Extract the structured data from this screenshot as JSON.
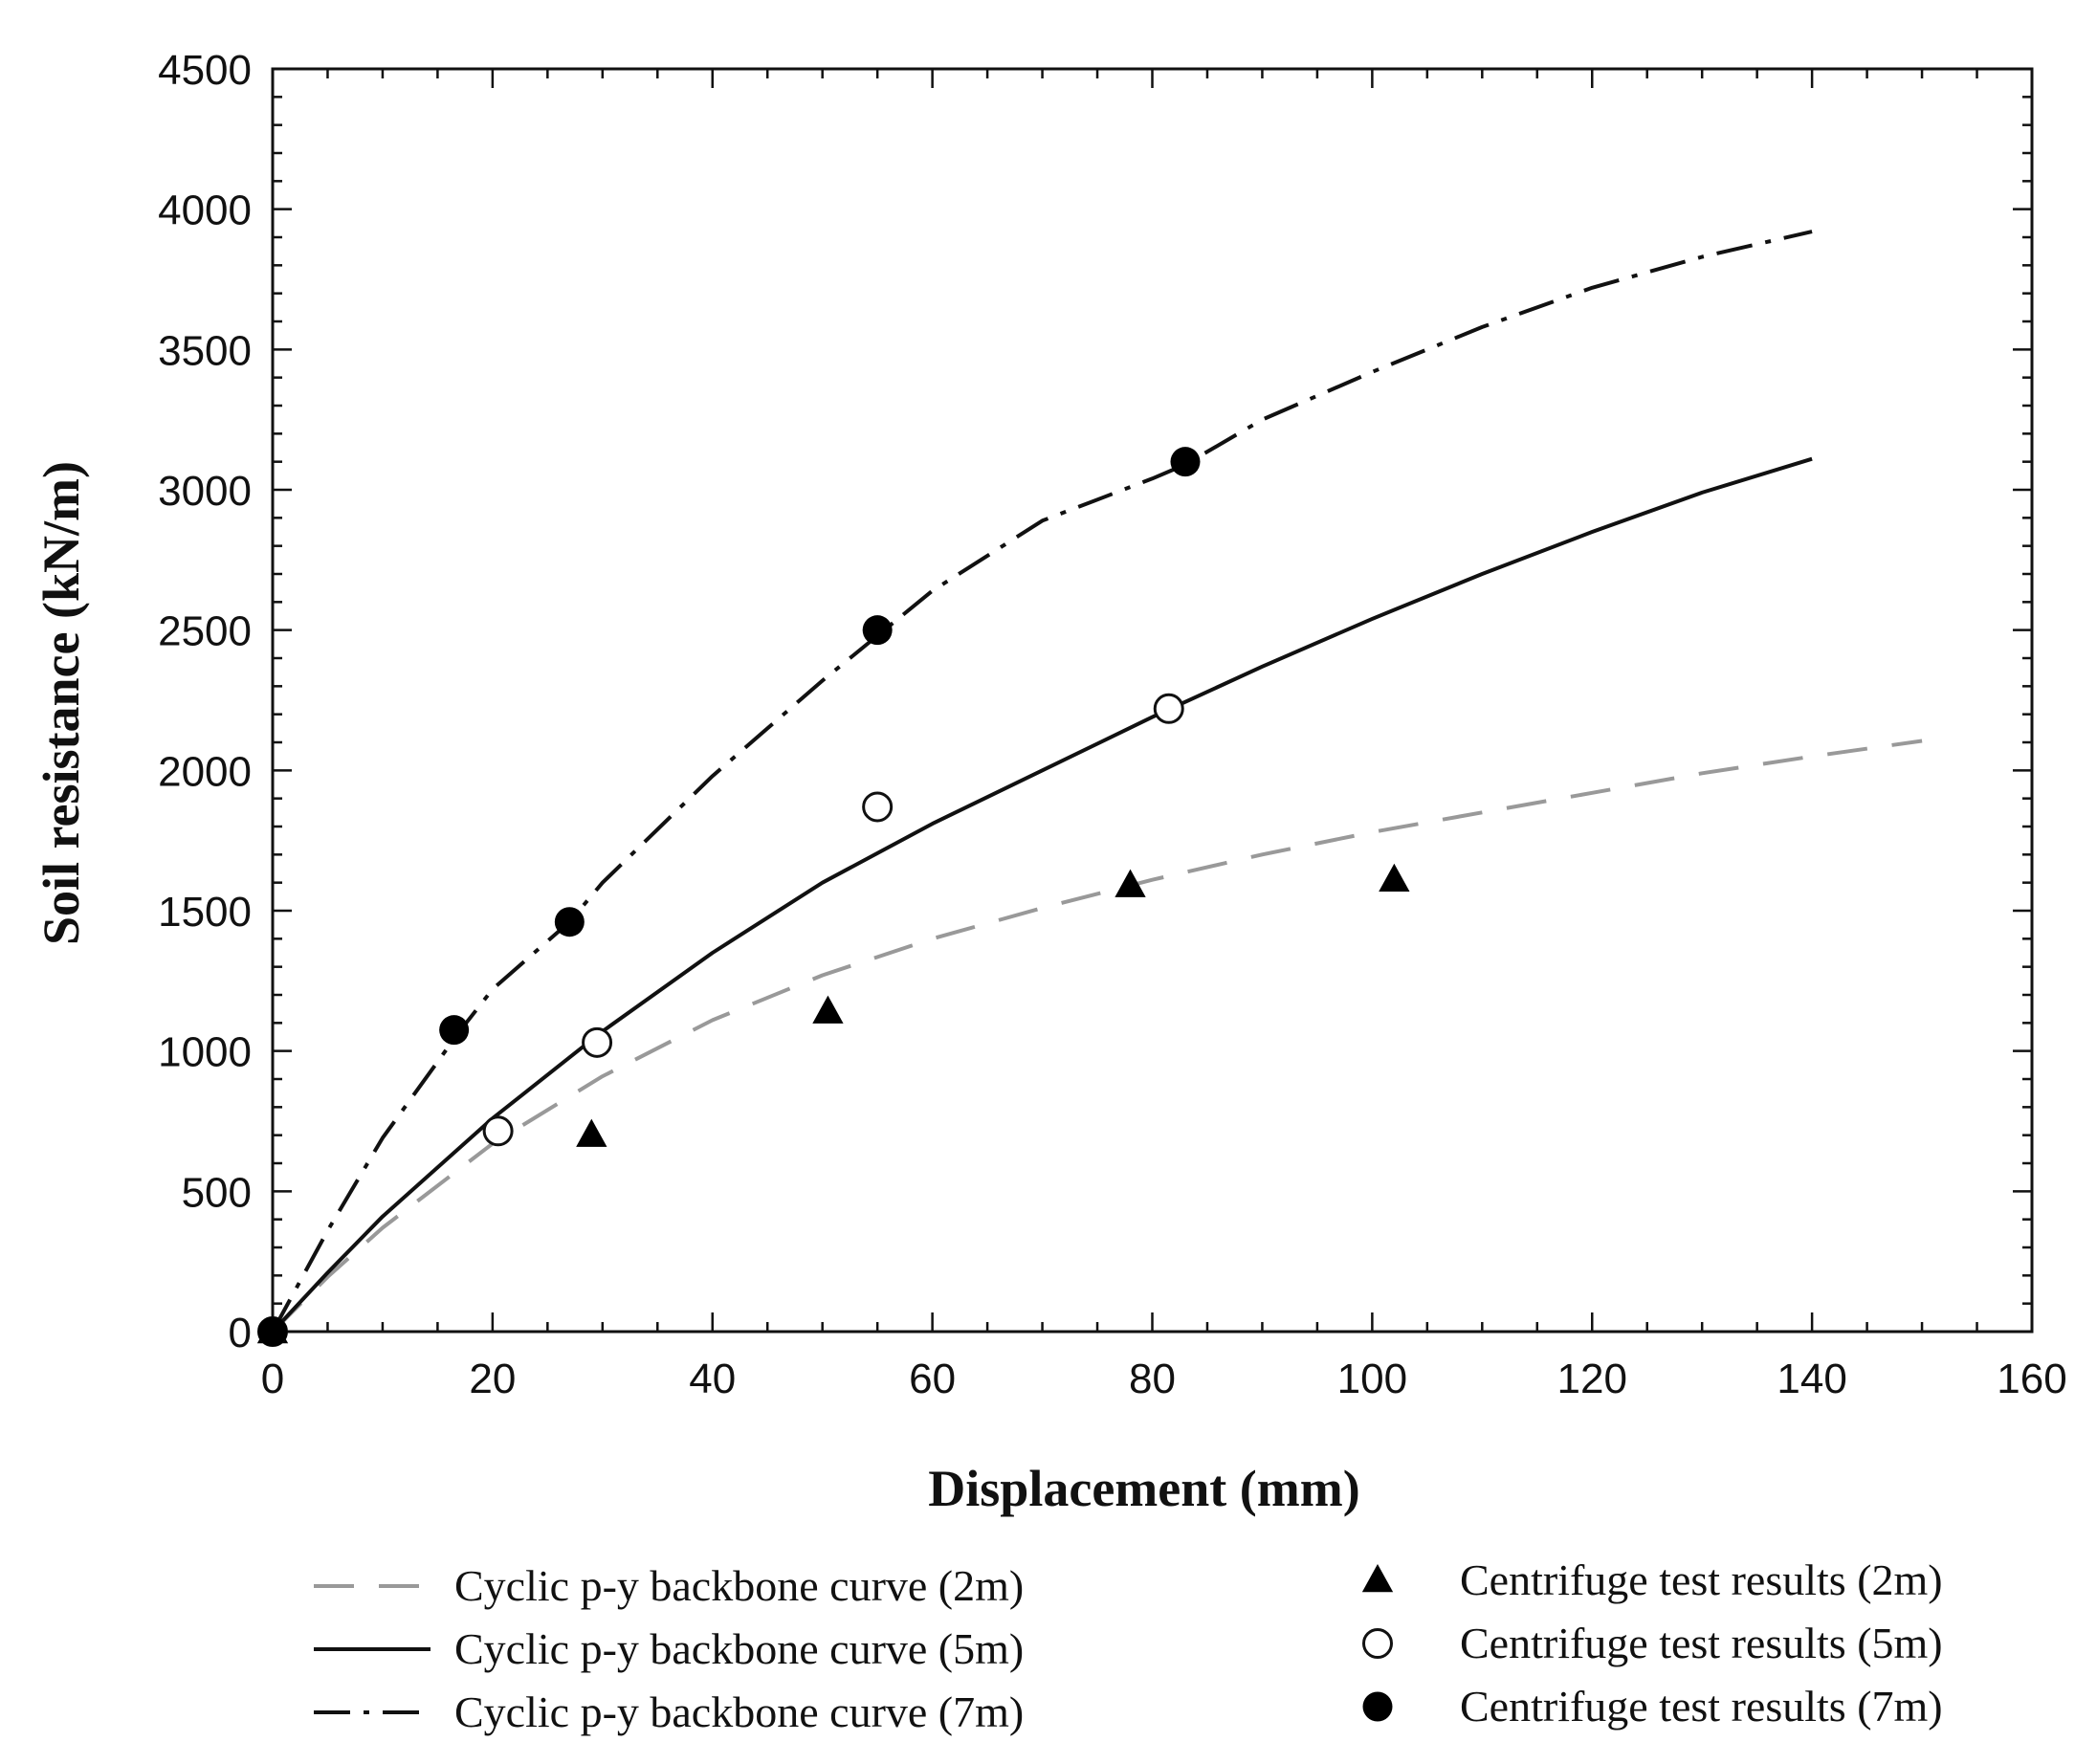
{
  "chart_data": {
    "type": "line",
    "title": "",
    "xlabel": "Displacement (mm)",
    "ylabel": "Soil resistance (kN/m)",
    "xlim": [
      0,
      160
    ],
    "ylim": [
      0,
      4500
    ],
    "xticks": [
      0,
      20,
      40,
      60,
      80,
      100,
      120,
      140,
      160
    ],
    "yticks": [
      0,
      500,
      1000,
      1500,
      2000,
      2500,
      3000,
      3500,
      4000,
      4500
    ],
    "grid": false,
    "series": [
      {
        "name": "Cyclic p-y backbone curve (2m)",
        "style": "dashed",
        "color": "#999999",
        "x": [
          0,
          5,
          10,
          20,
          30,
          40,
          50,
          60,
          70,
          80,
          90,
          100,
          110,
          120,
          130,
          140,
          150
        ],
        "y": [
          0,
          195,
          370,
          670,
          910,
          1110,
          1270,
          1400,
          1510,
          1610,
          1700,
          1780,
          1850,
          1920,
          1990,
          2050,
          2105
        ]
      },
      {
        "name": "Cyclic p-y backbone curve (5m)",
        "style": "solid",
        "color": "#111111",
        "x": [
          0,
          5,
          10,
          20,
          30,
          40,
          50,
          60,
          70,
          80,
          90,
          100,
          110,
          120,
          130,
          140
        ],
        "y": [
          0,
          210,
          410,
          760,
          1070,
          1350,
          1600,
          1810,
          2000,
          2190,
          2370,
          2540,
          2700,
          2850,
          2990,
          3110
        ]
      },
      {
        "name": "Cyclic p-y backbone curve (7m)",
        "style": "dashdot",
        "color": "#111111",
        "x": [
          0,
          5,
          10,
          17,
          20,
          27,
          30,
          40,
          50,
          55,
          60,
          70,
          80,
          83,
          90,
          100,
          110,
          120,
          130,
          140
        ],
        "y": [
          0,
          360,
          690,
          1070,
          1220,
          1460,
          1600,
          1980,
          2320,
          2480,
          2640,
          2890,
          3040,
          3090,
          3250,
          3420,
          3580,
          3720,
          3830,
          3920
        ]
      }
    ],
    "scatter_series": [
      {
        "name": "Centrifuge test results (2m)",
        "marker": "filled-triangle",
        "x": [
          0,
          29,
          50.5,
          78,
          102
        ],
        "y": [
          0,
          700,
          1140,
          1590,
          1610
        ]
      },
      {
        "name": "Centrifuge test results (5m)",
        "marker": "open-circle",
        "x": [
          0,
          20.5,
          29.5,
          55,
          81.5
        ],
        "y": [
          0,
          715,
          1030,
          1870,
          2220
        ]
      },
      {
        "name": "Centrifuge test results (7m)",
        "marker": "filled-circle",
        "x": [
          0,
          16.5,
          27,
          55,
          83
        ],
        "y": [
          0,
          1075,
          1460,
          2500,
          3100
        ]
      }
    ],
    "legend": {
      "placement": "bottom",
      "lines": [
        "Cyclic p-y backbone curve (2m)",
        "Cyclic p-y backbone curve (5m)",
        "Cyclic p-y backbone curve (7m)"
      ],
      "markers": [
        "Centrifuge test results (2m)",
        "Centrifuge test results (5m)",
        "Centrifuge test results (7m)"
      ]
    }
  }
}
